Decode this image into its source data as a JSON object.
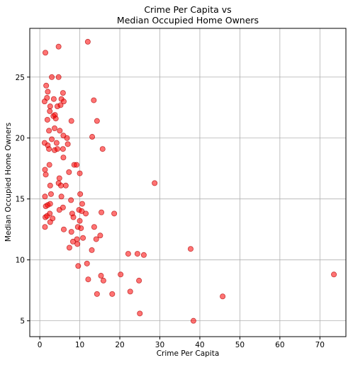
{
  "chart_data": {
    "type": "scatter",
    "title_lines": [
      "Crime Per Capita vs",
      "Median Occupied Home Owners"
    ],
    "xlabel": "Crime Per Capita",
    "ylabel": "Median Occupied Home Owners",
    "xlim": [
      -2.5,
      76.5
    ],
    "ylim": [
      3.7,
      29.0
    ],
    "xticks": [
      0,
      10,
      20,
      30,
      40,
      50,
      60,
      70
    ],
    "yticks": [
      5,
      10,
      15,
      20,
      25
    ],
    "grid": true,
    "marker_color": "#ff0000",
    "marker_edge_color": "#b00000",
    "marker_alpha": 0.55,
    "points": [
      [
        1.4,
        27.0
      ],
      [
        4.7,
        27.5
      ],
      [
        12.0,
        27.9
      ],
      [
        3.0,
        25.0
      ],
      [
        4.7,
        25.0
      ],
      [
        1.6,
        24.3
      ],
      [
        2.0,
        23.8
      ],
      [
        5.8,
        23.7
      ],
      [
        1.2,
        23.0
      ],
      [
        1.8,
        23.3
      ],
      [
        3.5,
        23.2
      ],
      [
        5.4,
        23.2
      ],
      [
        6.0,
        23.0
      ],
      [
        13.5,
        23.1
      ],
      [
        2.6,
        22.6
      ],
      [
        4.4,
        22.6
      ],
      [
        5.2,
        22.7
      ],
      [
        2.5,
        22.2
      ],
      [
        3.4,
        21.8
      ],
      [
        3.8,
        21.9
      ],
      [
        4.0,
        21.6
      ],
      [
        1.9,
        21.5
      ],
      [
        7.9,
        21.4
      ],
      [
        14.3,
        21.4
      ],
      [
        2.3,
        20.6
      ],
      [
        3.7,
        20.8
      ],
      [
        5.0,
        20.6
      ],
      [
        5.9,
        20.2
      ],
      [
        6.8,
        20.0
      ],
      [
        13.1,
        20.1
      ],
      [
        3.0,
        19.9
      ],
      [
        1.2,
        19.6
      ],
      [
        2.0,
        19.4
      ],
      [
        4.2,
        19.6
      ],
      [
        7.0,
        19.5
      ],
      [
        2.3,
        19.1
      ],
      [
        3.7,
        19.0
      ],
      [
        4.4,
        19.1
      ],
      [
        5.8,
        19.1
      ],
      [
        15.7,
        19.1
      ],
      [
        5.9,
        18.4
      ],
      [
        2.4,
        17.8
      ],
      [
        8.6,
        17.8
      ],
      [
        9.2,
        17.8
      ],
      [
        1.3,
        17.4
      ],
      [
        7.3,
        17.2
      ],
      [
        10.0,
        17.1
      ],
      [
        1.5,
        17.0
      ],
      [
        4.9,
        16.7
      ],
      [
        4.7,
        16.3
      ],
      [
        2.6,
        16.1
      ],
      [
        5.3,
        16.1
      ],
      [
        6.5,
        16.1
      ],
      [
        28.7,
        16.3
      ],
      [
        2.8,
        15.4
      ],
      [
        5.4,
        15.2
      ],
      [
        10.1,
        15.4
      ],
      [
        1.3,
        15.2
      ],
      [
        7.8,
        14.9
      ],
      [
        10.6,
        14.6
      ],
      [
        1.5,
        14.4
      ],
      [
        2.0,
        14.5
      ],
      [
        2.6,
        14.6
      ],
      [
        5.8,
        14.3
      ],
      [
        4.9,
        14.1
      ],
      [
        9.8,
        14.1
      ],
      [
        10.5,
        14.0
      ],
      [
        11.5,
        13.8
      ],
      [
        15.4,
        13.9
      ],
      [
        18.6,
        13.8
      ],
      [
        1.4,
        13.5
      ],
      [
        1.8,
        13.6
      ],
      [
        2.5,
        13.8
      ],
      [
        3.2,
        13.4
      ],
      [
        8.1,
        13.8
      ],
      [
        8.4,
        13.5
      ],
      [
        2.6,
        13.1
      ],
      [
        10.0,
        13.2
      ],
      [
        1.3,
        12.7
      ],
      [
        9.5,
        12.7
      ],
      [
        10.3,
        12.6
      ],
      [
        13.6,
        12.7
      ],
      [
        6.0,
        12.5
      ],
      [
        7.9,
        12.3
      ],
      [
        15.1,
        12.0
      ],
      [
        10.8,
        11.8
      ],
      [
        14.1,
        11.7
      ],
      [
        9.3,
        11.7
      ],
      [
        8.3,
        11.5
      ],
      [
        9.4,
        11.3
      ],
      [
        7.4,
        11.0
      ],
      [
        13.0,
        10.8
      ],
      [
        22.1,
        10.5
      ],
      [
        24.4,
        10.5
      ],
      [
        26.0,
        10.4
      ],
      [
        37.7,
        10.9
      ],
      [
        11.8,
        9.7
      ],
      [
        9.6,
        9.5
      ],
      [
        15.3,
        8.7
      ],
      [
        20.2,
        8.8
      ],
      [
        73.5,
        8.8
      ],
      [
        12.1,
        8.4
      ],
      [
        15.9,
        8.3
      ],
      [
        24.8,
        8.3
      ],
      [
        22.6,
        7.4
      ],
      [
        14.3,
        7.2
      ],
      [
        18.1,
        7.2
      ],
      [
        45.7,
        7.0
      ],
      [
        25.0,
        5.6
      ],
      [
        38.4,
        5.0
      ]
    ]
  }
}
